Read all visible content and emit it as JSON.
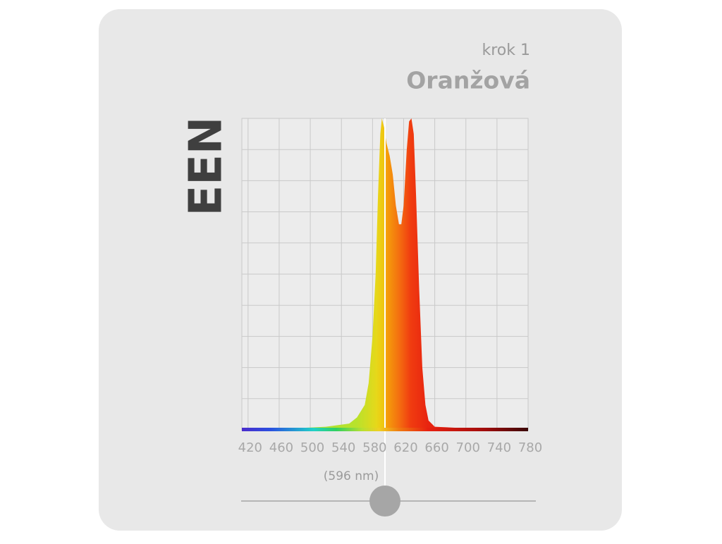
{
  "header": {
    "step": "krok 1",
    "title": "Oranžová"
  },
  "brand": "EEN",
  "chart_data": {
    "type": "area",
    "x": [
      412,
      480,
      520,
      550,
      560,
      570,
      575,
      580,
      584,
      587,
      590,
      592,
      595,
      598,
      602,
      606,
      610,
      614,
      617,
      620,
      624,
      627,
      630,
      633,
      636,
      640,
      644,
      648,
      652,
      660,
      700,
      780
    ],
    "values": [
      0.005,
      0.005,
      0.01,
      0.02,
      0.04,
      0.08,
      0.15,
      0.3,
      0.5,
      0.75,
      0.95,
      1.0,
      0.97,
      0.92,
      0.88,
      0.82,
      0.72,
      0.66,
      0.66,
      0.72,
      0.9,
      0.99,
      1.0,
      0.95,
      0.75,
      0.45,
      0.2,
      0.08,
      0.03,
      0.01,
      0.005,
      0.005
    ],
    "xlim": [
      412,
      780
    ],
    "ylim": [
      0,
      1
    ],
    "xticks": [
      420,
      460,
      500,
      540,
      580,
      620,
      660,
      700,
      740,
      780
    ],
    "yticks": [
      0,
      0.1,
      0.2,
      0.3,
      0.4,
      0.5,
      0.6,
      0.7,
      0.8,
      0.9,
      1
    ],
    "grid": true,
    "marker": {
      "value": 596,
      "label": "(596 nm)"
    }
  }
}
